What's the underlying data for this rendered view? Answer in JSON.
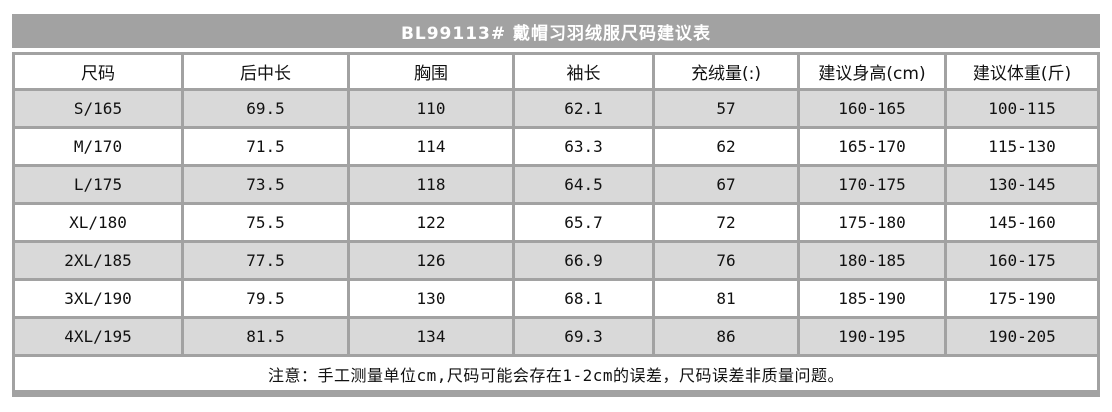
{
  "title": "BL99113# 戴帽习羽绒服尺码建议表",
  "colors": {
    "title_bar_bg": "#a2a2a2",
    "title_text": "#ffffff",
    "grid": "#a2a2a2",
    "row_alt_bg": "#d9d9d9",
    "row_bg": "#ffffff",
    "text": "#111111"
  },
  "table": {
    "headers": [
      "尺码",
      "后中长",
      "胸围",
      "袖长",
      "充绒量(:)",
      "建议身高(cm)",
      "建议体重(斤)"
    ],
    "rows": [
      [
        "S/165",
        "69.5",
        "110",
        "62.1",
        "57",
        "160-165",
        "100-115"
      ],
      [
        "M/170",
        "71.5",
        "114",
        "63.3",
        "62",
        "165-170",
        "115-130"
      ],
      [
        "L/175",
        "73.5",
        "118",
        "64.5",
        "67",
        "170-175",
        "130-145"
      ],
      [
        "XL/180",
        "75.5",
        "122",
        "65.7",
        "72",
        "175-180",
        "145-160"
      ],
      [
        "2XL/185",
        "77.5",
        "126",
        "66.9",
        "76",
        "180-185",
        "160-175"
      ],
      [
        "3XL/190",
        "79.5",
        "130",
        "68.1",
        "81",
        "185-190",
        "175-190"
      ],
      [
        "4XL/195",
        "81.5",
        "134",
        "69.3",
        "86",
        "190-195",
        "190-205"
      ]
    ],
    "note": "注意：手工测量单位cm,尺码可能会存在1-2cm的误差，尺码误差非质量问题。"
  }
}
